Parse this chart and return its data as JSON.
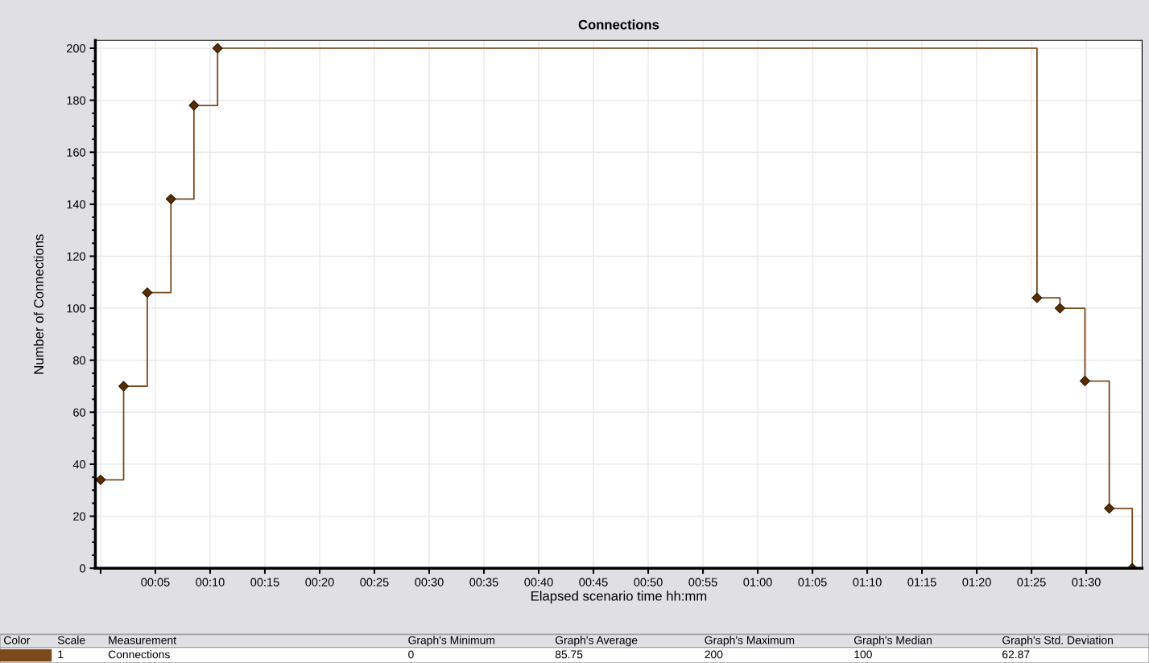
{
  "chart_data": {
    "type": "step",
    "title": "Connections",
    "xlabel": "Elapsed scenario time hh:mm",
    "ylabel": "Number of Connections",
    "x": [
      0,
      0.035,
      0.071,
      0.107,
      0.142,
      0.178,
      1.425,
      1.46,
      1.498,
      1.535,
      1.57
    ],
    "series": [
      {
        "name": "Connections",
        "color": "#7b4a1c",
        "values": [
          34,
          70,
          106,
          142,
          178,
          200,
          104,
          100,
          72,
          23,
          0
        ]
      }
    ],
    "xlim": [
      -0.008,
      1.585
    ],
    "xticks": [
      {
        "value": 0,
        "label": null
      },
      {
        "value": 0.08333,
        "label": "00:05"
      },
      {
        "value": 0.16667,
        "label": "00:10"
      },
      {
        "value": 0.25,
        "label": "00:15"
      },
      {
        "value": 0.33333,
        "label": "00:20"
      },
      {
        "value": 0.41667,
        "label": "00:25"
      },
      {
        "value": 0.5,
        "label": "00:30"
      },
      {
        "value": 0.58333,
        "label": "00:35"
      },
      {
        "value": 0.66667,
        "label": "00:40"
      },
      {
        "value": 0.75,
        "label": "00:45"
      },
      {
        "value": 0.83333,
        "label": "00:50"
      },
      {
        "value": 0.91667,
        "label": "00:55"
      },
      {
        "value": 1.0,
        "label": "01:00"
      },
      {
        "value": 1.08333,
        "label": "01:05"
      },
      {
        "value": 1.16667,
        "label": "01:10"
      },
      {
        "value": 1.25,
        "label": "01:15"
      },
      {
        "value": 1.33333,
        "label": "01:20"
      },
      {
        "value": 1.41667,
        "label": "01:25"
      },
      {
        "value": 1.5,
        "label": "01:30"
      }
    ],
    "ylim": [
      0,
      203
    ],
    "yticks": [
      0,
      20,
      40,
      60,
      80,
      100,
      120,
      140,
      160,
      180,
      200
    ],
    "grid": true,
    "marker": "diamond",
    "line_style": "solid",
    "legend": "bottom",
    "annotations": [
      "Color",
      "Scale",
      "Measurement",
      "Graph's Minimum",
      "Graph's Average",
      "Graph's Maximum",
      "Graph's Median",
      "Graph's Std. Deviation",
      "1",
      "0",
      "85.75",
      "200",
      "100",
      "62.87"
    ]
  }
}
